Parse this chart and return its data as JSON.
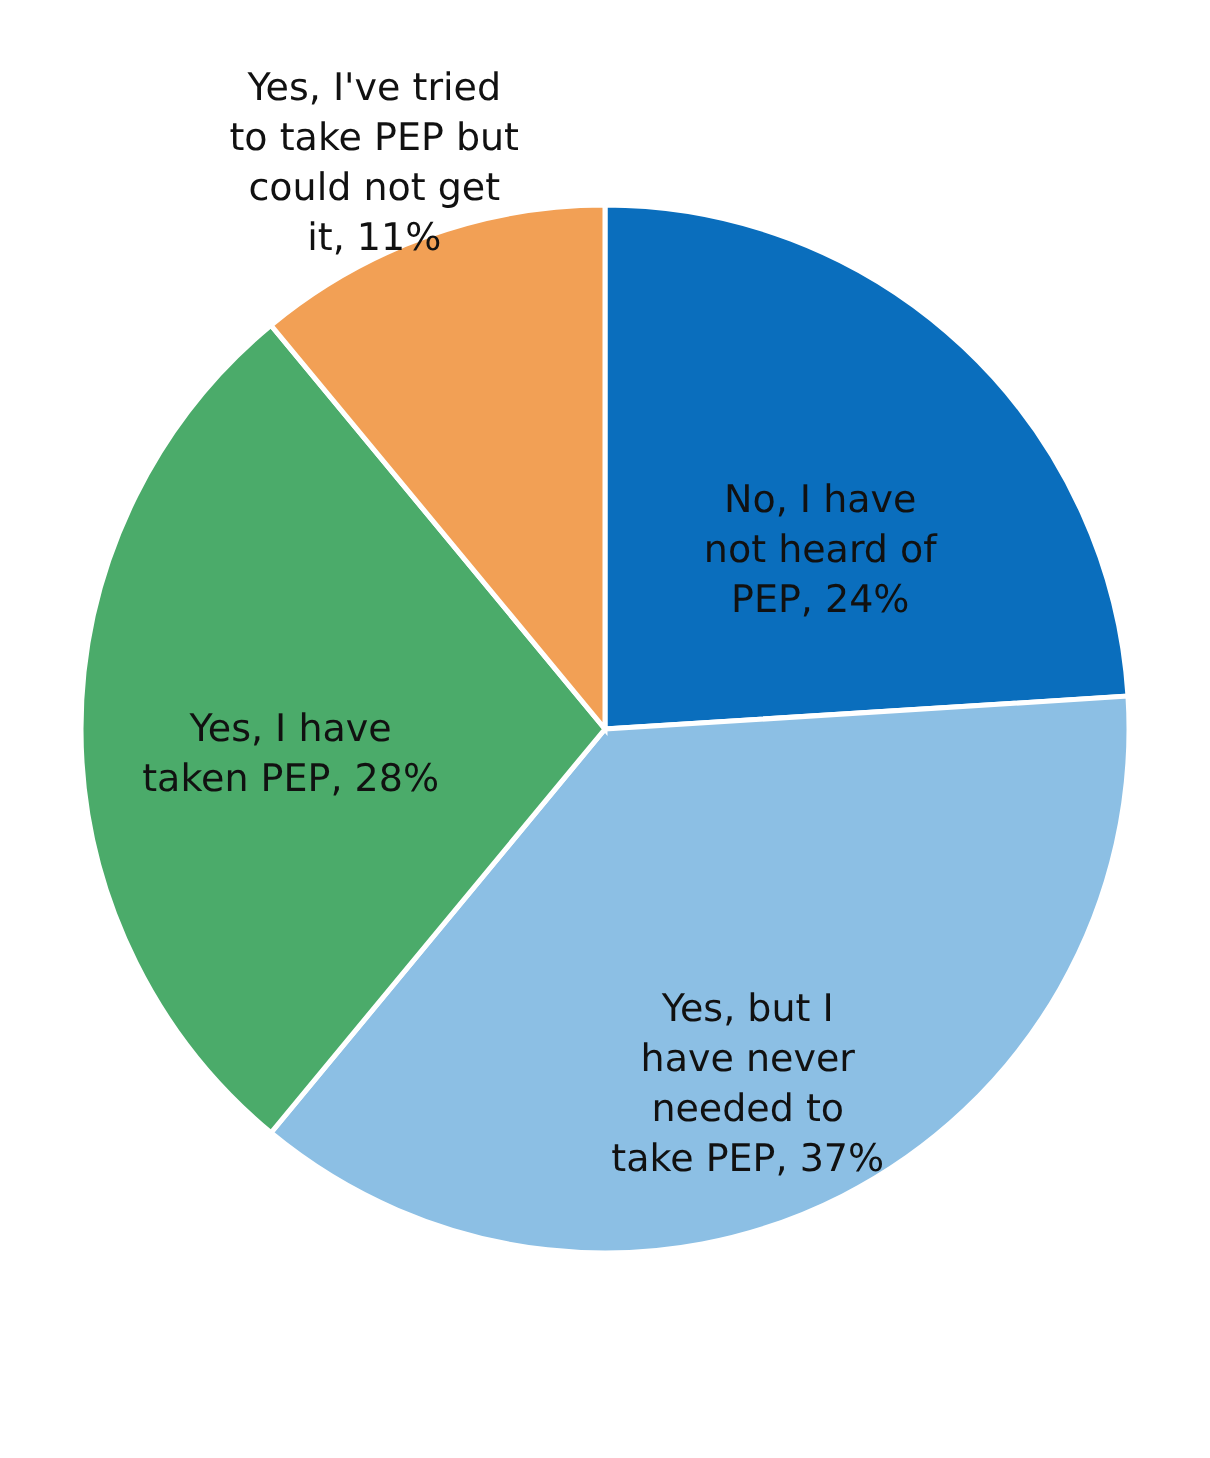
{
  "chart_data": {
    "type": "pie",
    "categories": [
      "No, I have not heard of PEP",
      "Yes, but I have never needed to take PEP",
      "Yes, I have taken PEP",
      "Yes, I've tried to take PEP but could not get it"
    ],
    "values": [
      24,
      37,
      28,
      11
    ],
    "value_labels": [
      "24%",
      "37%",
      "28%",
      "11%"
    ],
    "colors": [
      "#0a6ebd",
      "#8cbfe4",
      "#4bab6a",
      "#f2a055"
    ]
  }
}
